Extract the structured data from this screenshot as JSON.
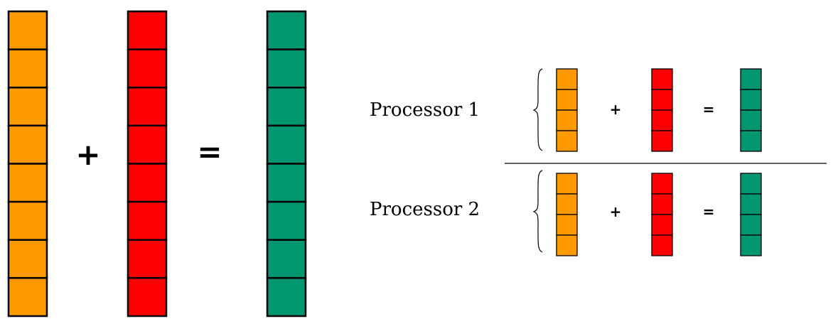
{
  "colors": {
    "vector_a": "#FF9900",
    "vector_b": "#FF0000",
    "vector_c": "#009670",
    "stroke": "#000000"
  },
  "full_addition": {
    "cells_per_vector": 8,
    "plus_sign": "+",
    "equals_sign": "="
  },
  "partitioned_addition": {
    "cells_per_vector": 4,
    "processors": [
      {
        "label": "Processor 1",
        "plus_sign": "+",
        "equals_sign": "="
      },
      {
        "label": "Processor 2",
        "plus_sign": "+",
        "equals_sign": "="
      }
    ]
  }
}
